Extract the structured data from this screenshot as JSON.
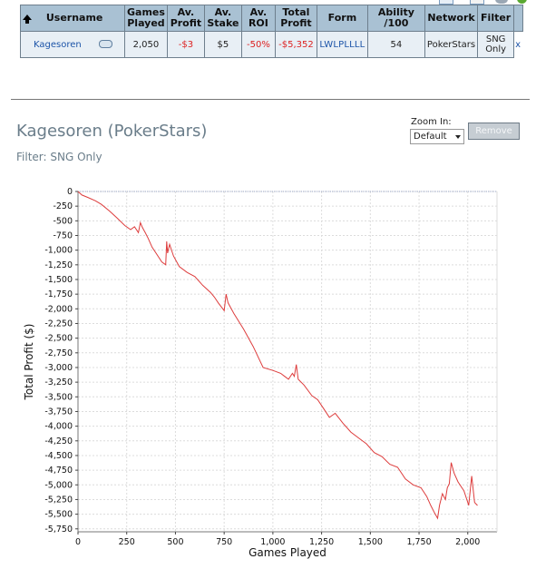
{
  "table": {
    "headers": {
      "username": "Username",
      "games_played": [
        "Games",
        "Played"
      ],
      "av_profit": [
        "Av.",
        "Profit"
      ],
      "av_stake": [
        "Av.",
        "Stake"
      ],
      "av_roi": [
        "Av.",
        "ROI"
      ],
      "total_profit": [
        "Total",
        "Profit"
      ],
      "form": "Form",
      "ability": "Ability /100",
      "network": "Network",
      "filter": "Filter"
    },
    "row": {
      "username": "Kagesoren",
      "games_played": "2,050",
      "av_profit": "-$3",
      "av_stake": "$5",
      "av_roi": "-50%",
      "total_profit": "-$5,352",
      "form": "LWLPLLLL",
      "ability": "54",
      "network": "PokerStars",
      "filter": [
        "SNG",
        "Only"
      ],
      "remove": "x"
    }
  },
  "chart_header": {
    "title": "Kagesoren (PokerStars)",
    "filter": "Filter: SNG Only",
    "zoom_label": "Zoom In:",
    "zoom_value": "Default",
    "remove_label": "Remove"
  },
  "chart_data": {
    "type": "line",
    "title": "",
    "xlabel": "Games Played",
    "ylabel": "Total Profit ($)",
    "xlim": [
      0,
      2150
    ],
    "ylim": [
      -5800,
      0
    ],
    "xticks": [
      0,
      250,
      500,
      750,
      1000,
      1250,
      1500,
      1750,
      2000
    ],
    "xtick_labels": [
      "0",
      "250",
      "500",
      "750",
      "1,000",
      "1,250",
      "1,500",
      "1,750",
      "2,000"
    ],
    "yticks": [
      0,
      -250,
      -500,
      -750,
      -1000,
      -1250,
      -1500,
      -1750,
      -2000,
      -2250,
      -2500,
      -2750,
      -3000,
      -3250,
      -3500,
      -3750,
      -4000,
      -4250,
      -4500,
      -4750,
      -5000,
      -5250,
      -5500,
      -5750
    ],
    "ytick_labels": [
      "0",
      "-250",
      "-500",
      "-750",
      "-1,000",
      "-1,250",
      "-1,500",
      "-1,750",
      "-2,000",
      "-2,250",
      "-2,500",
      "-2,750",
      "-3,000",
      "-3,250",
      "-3,500",
      "-3,750",
      "-4,000",
      "-4,250",
      "-4,500",
      "-4,750",
      "-5,000",
      "-5,250",
      "-5,500",
      "-5,750"
    ],
    "grid": true,
    "line_color": "#dd3c3c",
    "series": [
      {
        "x": [
          0,
          20,
          50,
          90,
          120,
          160,
          200,
          240,
          270,
          290,
          310,
          320,
          330,
          345,
          360,
          380,
          400,
          430,
          450,
          455,
          460,
          470,
          490,
          520,
          560,
          600,
          640,
          680,
          700,
          720,
          750,
          760,
          770,
          800,
          850,
          900,
          950,
          1000,
          1040,
          1060,
          1080,
          1100,
          1110,
          1120,
          1130,
          1160,
          1200,
          1230,
          1260,
          1290,
          1320,
          1360,
          1400,
          1440,
          1480,
          1520,
          1560,
          1600,
          1640,
          1680,
          1720,
          1760,
          1790,
          1810,
          1830,
          1845,
          1855,
          1870,
          1885,
          1895,
          1905,
          1915,
          1930,
          1950,
          1970,
          1980,
          1995,
          2005,
          2020,
          2035,
          2050
        ],
        "y": [
          0,
          -60,
          -100,
          -160,
          -220,
          -330,
          -450,
          -580,
          -650,
          -600,
          -700,
          -530,
          -610,
          -700,
          -800,
          -950,
          -1050,
          -1200,
          -1250,
          -850,
          -1050,
          -900,
          -1100,
          -1280,
          -1380,
          -1450,
          -1600,
          -1720,
          -1800,
          -1900,
          -2030,
          -1750,
          -1900,
          -2080,
          -2350,
          -2650,
          -3000,
          -3050,
          -3100,
          -3150,
          -3200,
          -3100,
          -3150,
          -2950,
          -3200,
          -3300,
          -3480,
          -3550,
          -3700,
          -3850,
          -3780,
          -3950,
          -4100,
          -4200,
          -4300,
          -4450,
          -4520,
          -4650,
          -4700,
          -4900,
          -5000,
          -5050,
          -5200,
          -5350,
          -5480,
          -5570,
          -5350,
          -5150,
          -5250,
          -5050,
          -4980,
          -4620,
          -4800,
          -4950,
          -5050,
          -5100,
          -5250,
          -5350,
          -4850,
          -5300,
          -5352
        ]
      }
    ]
  }
}
